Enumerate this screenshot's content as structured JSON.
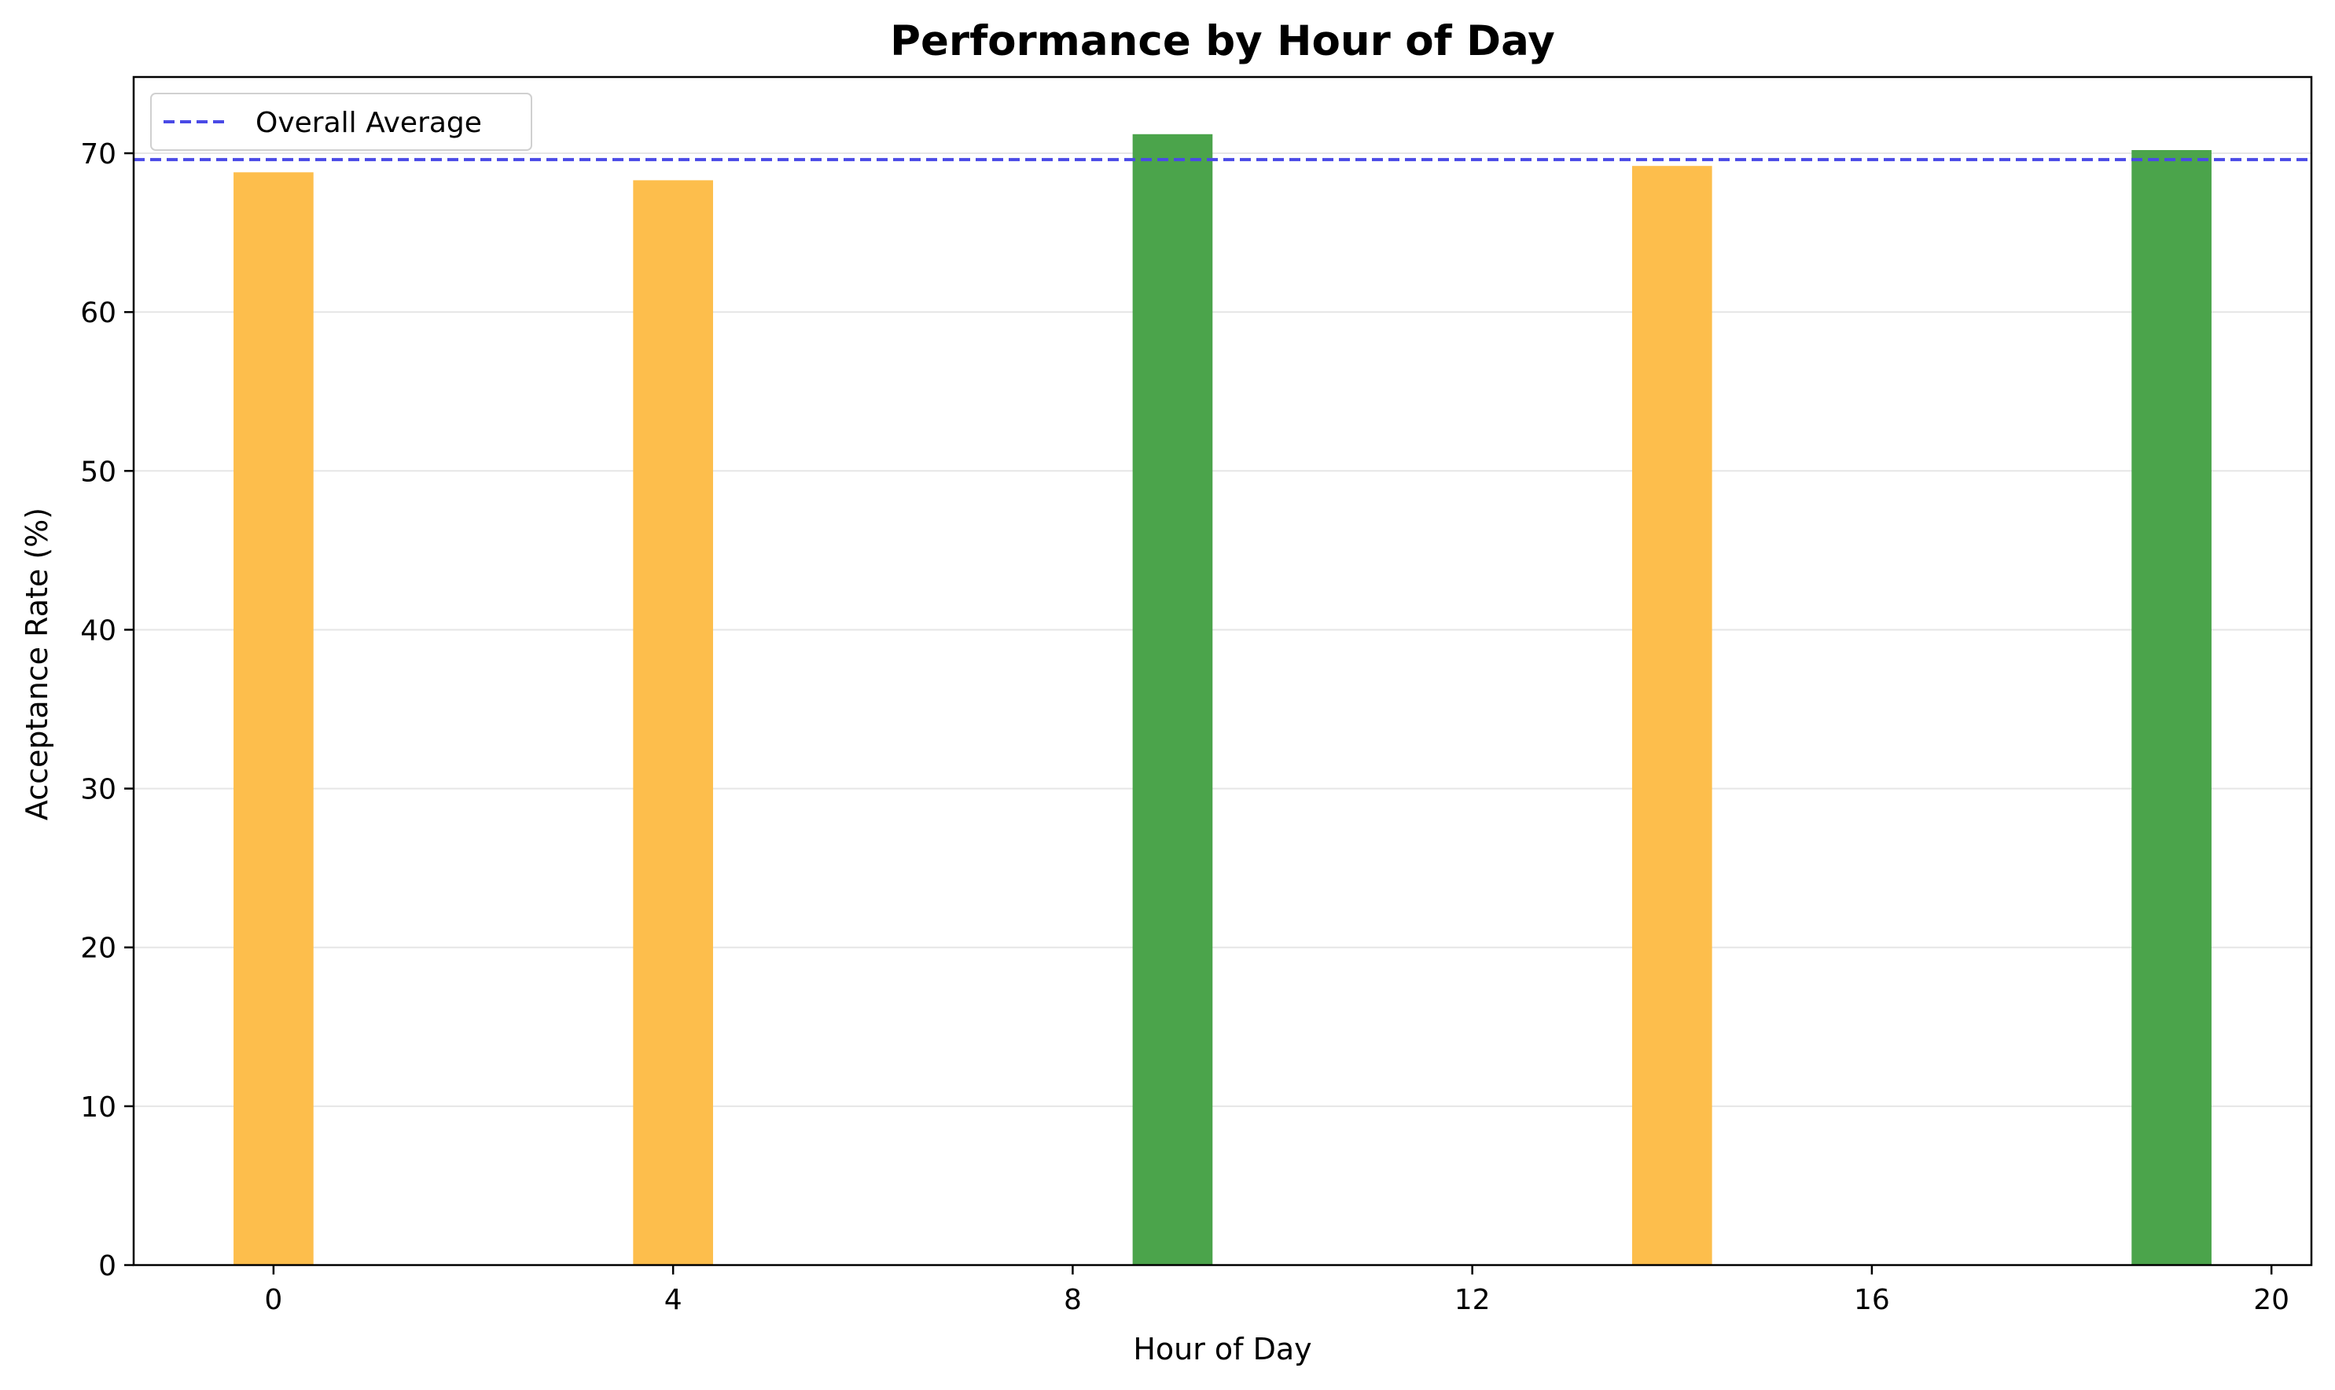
{
  "chart_data": {
    "type": "bar",
    "title": "Performance by Hour of Day",
    "xlabel": "Hour of Day",
    "ylabel": "Acceptance Rate (%)",
    "x": [
      0,
      4,
      9,
      14,
      19
    ],
    "values": [
      68.8,
      68.3,
      71.2,
      69.2,
      70.2
    ],
    "bar_colors": [
      "#fdbe4c",
      "#fdbe4c",
      "#4ba44b",
      "#fdbe4c",
      "#4ba44b"
    ],
    "xlim": [
      -1.4,
      20.4
    ],
    "ylim": [
      0,
      74.8
    ],
    "xticks": [
      0,
      4,
      8,
      12,
      16,
      20
    ],
    "yticks": [
      0,
      10,
      20,
      30,
      40,
      50,
      60,
      70
    ],
    "grid": "y",
    "reference_line": {
      "name": "Overall Average",
      "value": 69.6,
      "color": "#4a4ae6",
      "style": "dashed"
    },
    "legend": {
      "position": "top-left",
      "entries": [
        "Overall Average"
      ]
    }
  }
}
